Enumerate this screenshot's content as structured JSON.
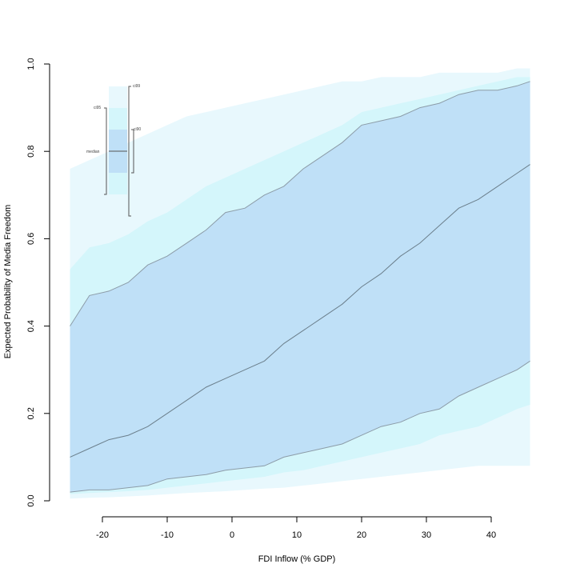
{
  "chart_data": {
    "type": "area",
    "title": "",
    "xlabel": "FDI Inflow (% GDP)",
    "ylabel": "Expected Probability of Media Freedom",
    "xlim": [
      -26,
      46.5
    ],
    "ylim": [
      0,
      1
    ],
    "xticks": [
      -20,
      -10,
      0,
      10,
      20,
      30,
      40
    ],
    "yticks": [
      0.0,
      0.2,
      0.4,
      0.6,
      0.8,
      1.0
    ],
    "ytick_labels": [
      "0.0",
      "0.2",
      "0.4",
      "0.6",
      "0.8",
      "1.0"
    ],
    "xtick_labels": [
      "-20",
      "-10",
      "0",
      "10",
      "20",
      "30",
      "40"
    ],
    "grid": false,
    "x": [
      -25,
      -22,
      -19,
      -16,
      -13,
      -10,
      -7,
      -4,
      -1,
      2,
      5,
      8,
      11,
      14,
      17,
      20,
      23,
      26,
      29,
      32,
      35,
      38,
      41,
      44,
      46
    ],
    "series": [
      {
        "name": "median",
        "values": [
          0.1,
          0.12,
          0.14,
          0.15,
          0.17,
          0.2,
          0.23,
          0.26,
          0.28,
          0.3,
          0.32,
          0.36,
          0.39,
          0.42,
          0.45,
          0.49,
          0.52,
          0.56,
          0.59,
          0.63,
          0.67,
          0.69,
          0.72,
          0.75,
          0.77
        ]
      },
      {
        "name": "ci90_low",
        "values": [
          0.02,
          0.025,
          0.025,
          0.03,
          0.035,
          0.05,
          0.055,
          0.06,
          0.07,
          0.075,
          0.08,
          0.1,
          0.11,
          0.12,
          0.13,
          0.15,
          0.17,
          0.18,
          0.2,
          0.21,
          0.24,
          0.26,
          0.28,
          0.3,
          0.32
        ]
      },
      {
        "name": "ci90_high",
        "values": [
          0.4,
          0.47,
          0.48,
          0.5,
          0.54,
          0.56,
          0.59,
          0.62,
          0.66,
          0.67,
          0.7,
          0.72,
          0.76,
          0.79,
          0.82,
          0.86,
          0.87,
          0.88,
          0.9,
          0.91,
          0.93,
          0.94,
          0.94,
          0.95,
          0.96
        ]
      },
      {
        "name": "ci95_low",
        "values": [
          0.015,
          0.018,
          0.02,
          0.022,
          0.025,
          0.03,
          0.035,
          0.04,
          0.045,
          0.05,
          0.055,
          0.065,
          0.07,
          0.08,
          0.09,
          0.1,
          0.11,
          0.12,
          0.13,
          0.15,
          0.16,
          0.17,
          0.19,
          0.21,
          0.22
        ]
      },
      {
        "name": "ci95_high",
        "values": [
          0.53,
          0.58,
          0.59,
          0.61,
          0.64,
          0.66,
          0.69,
          0.72,
          0.74,
          0.76,
          0.78,
          0.8,
          0.82,
          0.84,
          0.86,
          0.89,
          0.9,
          0.91,
          0.92,
          0.93,
          0.94,
          0.95,
          0.96,
          0.97,
          0.97
        ]
      },
      {
        "name": "ci99_low",
        "values": [
          0.005,
          0.007,
          0.008,
          0.01,
          0.012,
          0.015,
          0.018,
          0.02,
          0.022,
          0.025,
          0.028,
          0.03,
          0.035,
          0.04,
          0.045,
          0.05,
          0.055,
          0.06,
          0.065,
          0.07,
          0.075,
          0.08,
          0.08,
          0.08,
          0.08
        ]
      },
      {
        "name": "ci99_high",
        "values": [
          0.76,
          0.78,
          0.8,
          0.82,
          0.84,
          0.86,
          0.88,
          0.89,
          0.9,
          0.91,
          0.92,
          0.93,
          0.94,
          0.95,
          0.96,
          0.96,
          0.97,
          0.97,
          0.97,
          0.98,
          0.98,
          0.98,
          0.98,
          0.99,
          0.99
        ]
      }
    ],
    "legend": {
      "placement": "top-left",
      "labels": {
        "ci99": "ci99",
        "ci95": "ci95",
        "ci90": "ci90",
        "median": "median"
      }
    },
    "colors": {
      "ci99": "#e8f8fd",
      "ci95": "#d4f6fb",
      "ci90": "#bfe0f7",
      "median": "#6b7f8c",
      "bound": "#8c9ca8"
    }
  }
}
